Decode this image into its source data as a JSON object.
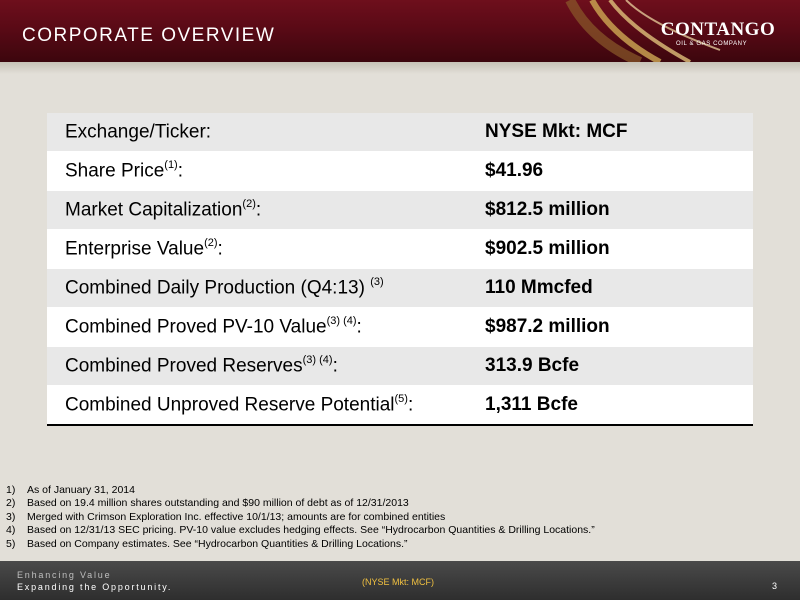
{
  "header": {
    "title": "CORPORATE OVERVIEW",
    "logo": {
      "name": "CONTANGO",
      "subtitle": "OIL & GAS COMPANY"
    }
  },
  "table": {
    "rows": [
      {
        "label": "Exchange/Ticker:",
        "sup": "",
        "suffix": "",
        "value": "NYSE Mkt: MCF"
      },
      {
        "label": "Share Price",
        "sup": "(1)",
        "suffix": ":",
        "value": "$41.96"
      },
      {
        "label": "Market Capitalization",
        "sup": "(2)",
        "suffix": ":",
        "value": "$812.5 million"
      },
      {
        "label": "Enterprise Value",
        "sup": "(2)",
        "suffix": ":",
        "value": "$902.5 million"
      },
      {
        "label": "Combined Daily Production (Q4:13) ",
        "sup": "(3)",
        "suffix": "",
        "value": "110 Mmcfed"
      },
      {
        "label": "Combined Proved PV-10 Value",
        "sup": "(3) (4)",
        "suffix": ":",
        "value": "$987.2 million"
      },
      {
        "label": "Combined Proved Reserves",
        "sup": "(3) (4)",
        "suffix": ":",
        "value": "313.9 Bcfe"
      },
      {
        "label": "Combined Unproved Reserve Potential",
        "sup": "(5)",
        "suffix": ":",
        "value": "1,311 Bcfe"
      }
    ]
  },
  "footnotes": [
    {
      "num": "1)",
      "text": "As of January 31, 2014"
    },
    {
      "num": "2)",
      "text": "Based on 19.4 million shares outstanding and $90 million of debt as of 12/31/2013"
    },
    {
      "num": "3)",
      "text": "Merged with Crimson Exploration Inc. effective 10/1/13; amounts are for combined entities"
    },
    {
      "num": "4)",
      "text": "Based on 12/31/13 SEC pricing. PV-10 value excludes hedging effects. See “Hydrocarbon Quantities & Drilling Locations.”"
    },
    {
      "num": "5)",
      "text": "Based on Company estimates. See “Hydrocarbon Quantities & Drilling Locations.”"
    }
  ],
  "footer": {
    "tagline_line1": "Enhancing Value",
    "tagline_line2": "Expanding the Opportunity.",
    "ticker": "(NYSE Mkt: MCF)",
    "page_number": "3"
  },
  "colors": {
    "header": "#5a0a16",
    "accent_gold": "#c8a050",
    "footer": "#3a3a3a",
    "background": "#e2dfd8"
  }
}
